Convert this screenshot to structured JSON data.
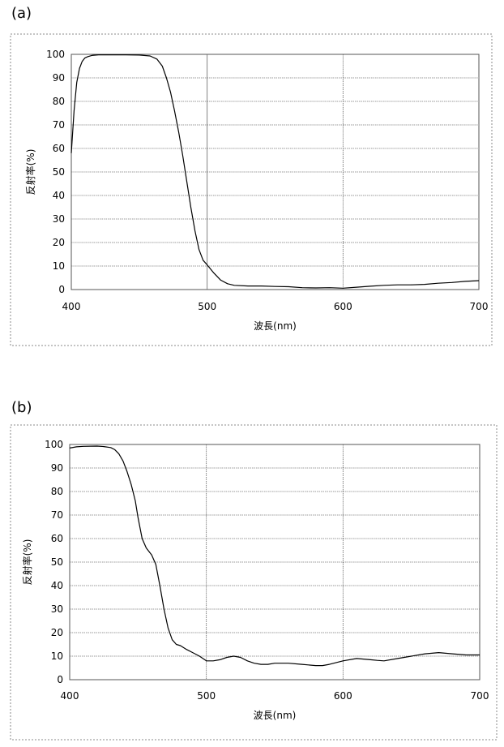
{
  "chart_data": [
    {
      "panel": "(a)",
      "type": "line",
      "xlabel": "波長(nm)",
      "ylabel": "反射率(%)",
      "xlim": [
        400,
        700
      ],
      "ylim": [
        0,
        100
      ],
      "xticks": [
        400,
        500,
        600,
        700
      ],
      "yticks": [
        0,
        10,
        20,
        30,
        40,
        50,
        60,
        70,
        80,
        90,
        100
      ],
      "grid": true,
      "series": [
        {
          "name": "reflectance",
          "x": [
            400,
            402,
            404,
            406,
            408,
            410,
            412,
            415,
            420,
            425,
            430,
            440,
            450,
            458,
            463,
            467,
            470,
            473,
            476,
            479,
            482,
            485,
            488,
            491,
            494,
            497,
            500,
            505,
            510,
            515,
            520,
            530,
            540,
            550,
            560,
            570,
            580,
            590,
            600,
            610,
            620,
            630,
            640,
            650,
            660,
            670,
            680,
            690,
            700
          ],
          "y": [
            58,
            76,
            88,
            94,
            97,
            98.5,
            99,
            99.5,
            99.8,
            99.8,
            99.8,
            99.8,
            99.7,
            99.3,
            98,
            95,
            90,
            84,
            76,
            67,
            57,
            46,
            35,
            25,
            17,
            12.5,
            10.5,
            7,
            4,
            2.5,
            1.8,
            1.5,
            1.5,
            1.3,
            1.2,
            0.8,
            0.7,
            0.8,
            0.6,
            1,
            1.4,
            1.8,
            2,
            2,
            2.2,
            2.7,
            3,
            3.5,
            3.8
          ]
        }
      ]
    },
    {
      "panel": "(b)",
      "type": "line",
      "xlabel": "波長(nm)",
      "ylabel": "反射率(%)",
      "xlim": [
        400,
        700
      ],
      "ylim": [
        0,
        100
      ],
      "xticks": [
        400,
        500,
        600,
        700
      ],
      "yticks": [
        0,
        10,
        20,
        30,
        40,
        50,
        60,
        70,
        80,
        90,
        100
      ],
      "grid": true,
      "series": [
        {
          "name": "reflectance",
          "x": [
            400,
            405,
            410,
            420,
            425,
            430,
            433,
            436,
            439,
            442,
            445,
            448,
            450,
            453,
            456,
            460,
            463,
            466,
            469,
            472,
            475,
            478,
            481,
            485,
            490,
            495,
            500,
            505,
            510,
            515,
            520,
            525,
            530,
            535,
            540,
            545,
            550,
            560,
            570,
            580,
            585,
            590,
            600,
            610,
            620,
            625,
            630,
            640,
            650,
            660,
            670,
            680,
            690,
            700
          ],
          "y": [
            98.5,
            99,
            99.2,
            99.3,
            99.1,
            98.7,
            97.8,
            96,
            93,
            88.5,
            83,
            76,
            69,
            60,
            56,
            53,
            49,
            40,
            30,
            22,
            17,
            15,
            14.5,
            13,
            11.5,
            10,
            8,
            8,
            8.5,
            9.5,
            10,
            9.5,
            8,
            7,
            6.5,
            6.5,
            7,
            7,
            6.5,
            6,
            6,
            6.5,
            8,
            9,
            8.5,
            8.2,
            8,
            9,
            10,
            11,
            11.5,
            11,
            10.5,
            10.5
          ]
        }
      ]
    }
  ]
}
